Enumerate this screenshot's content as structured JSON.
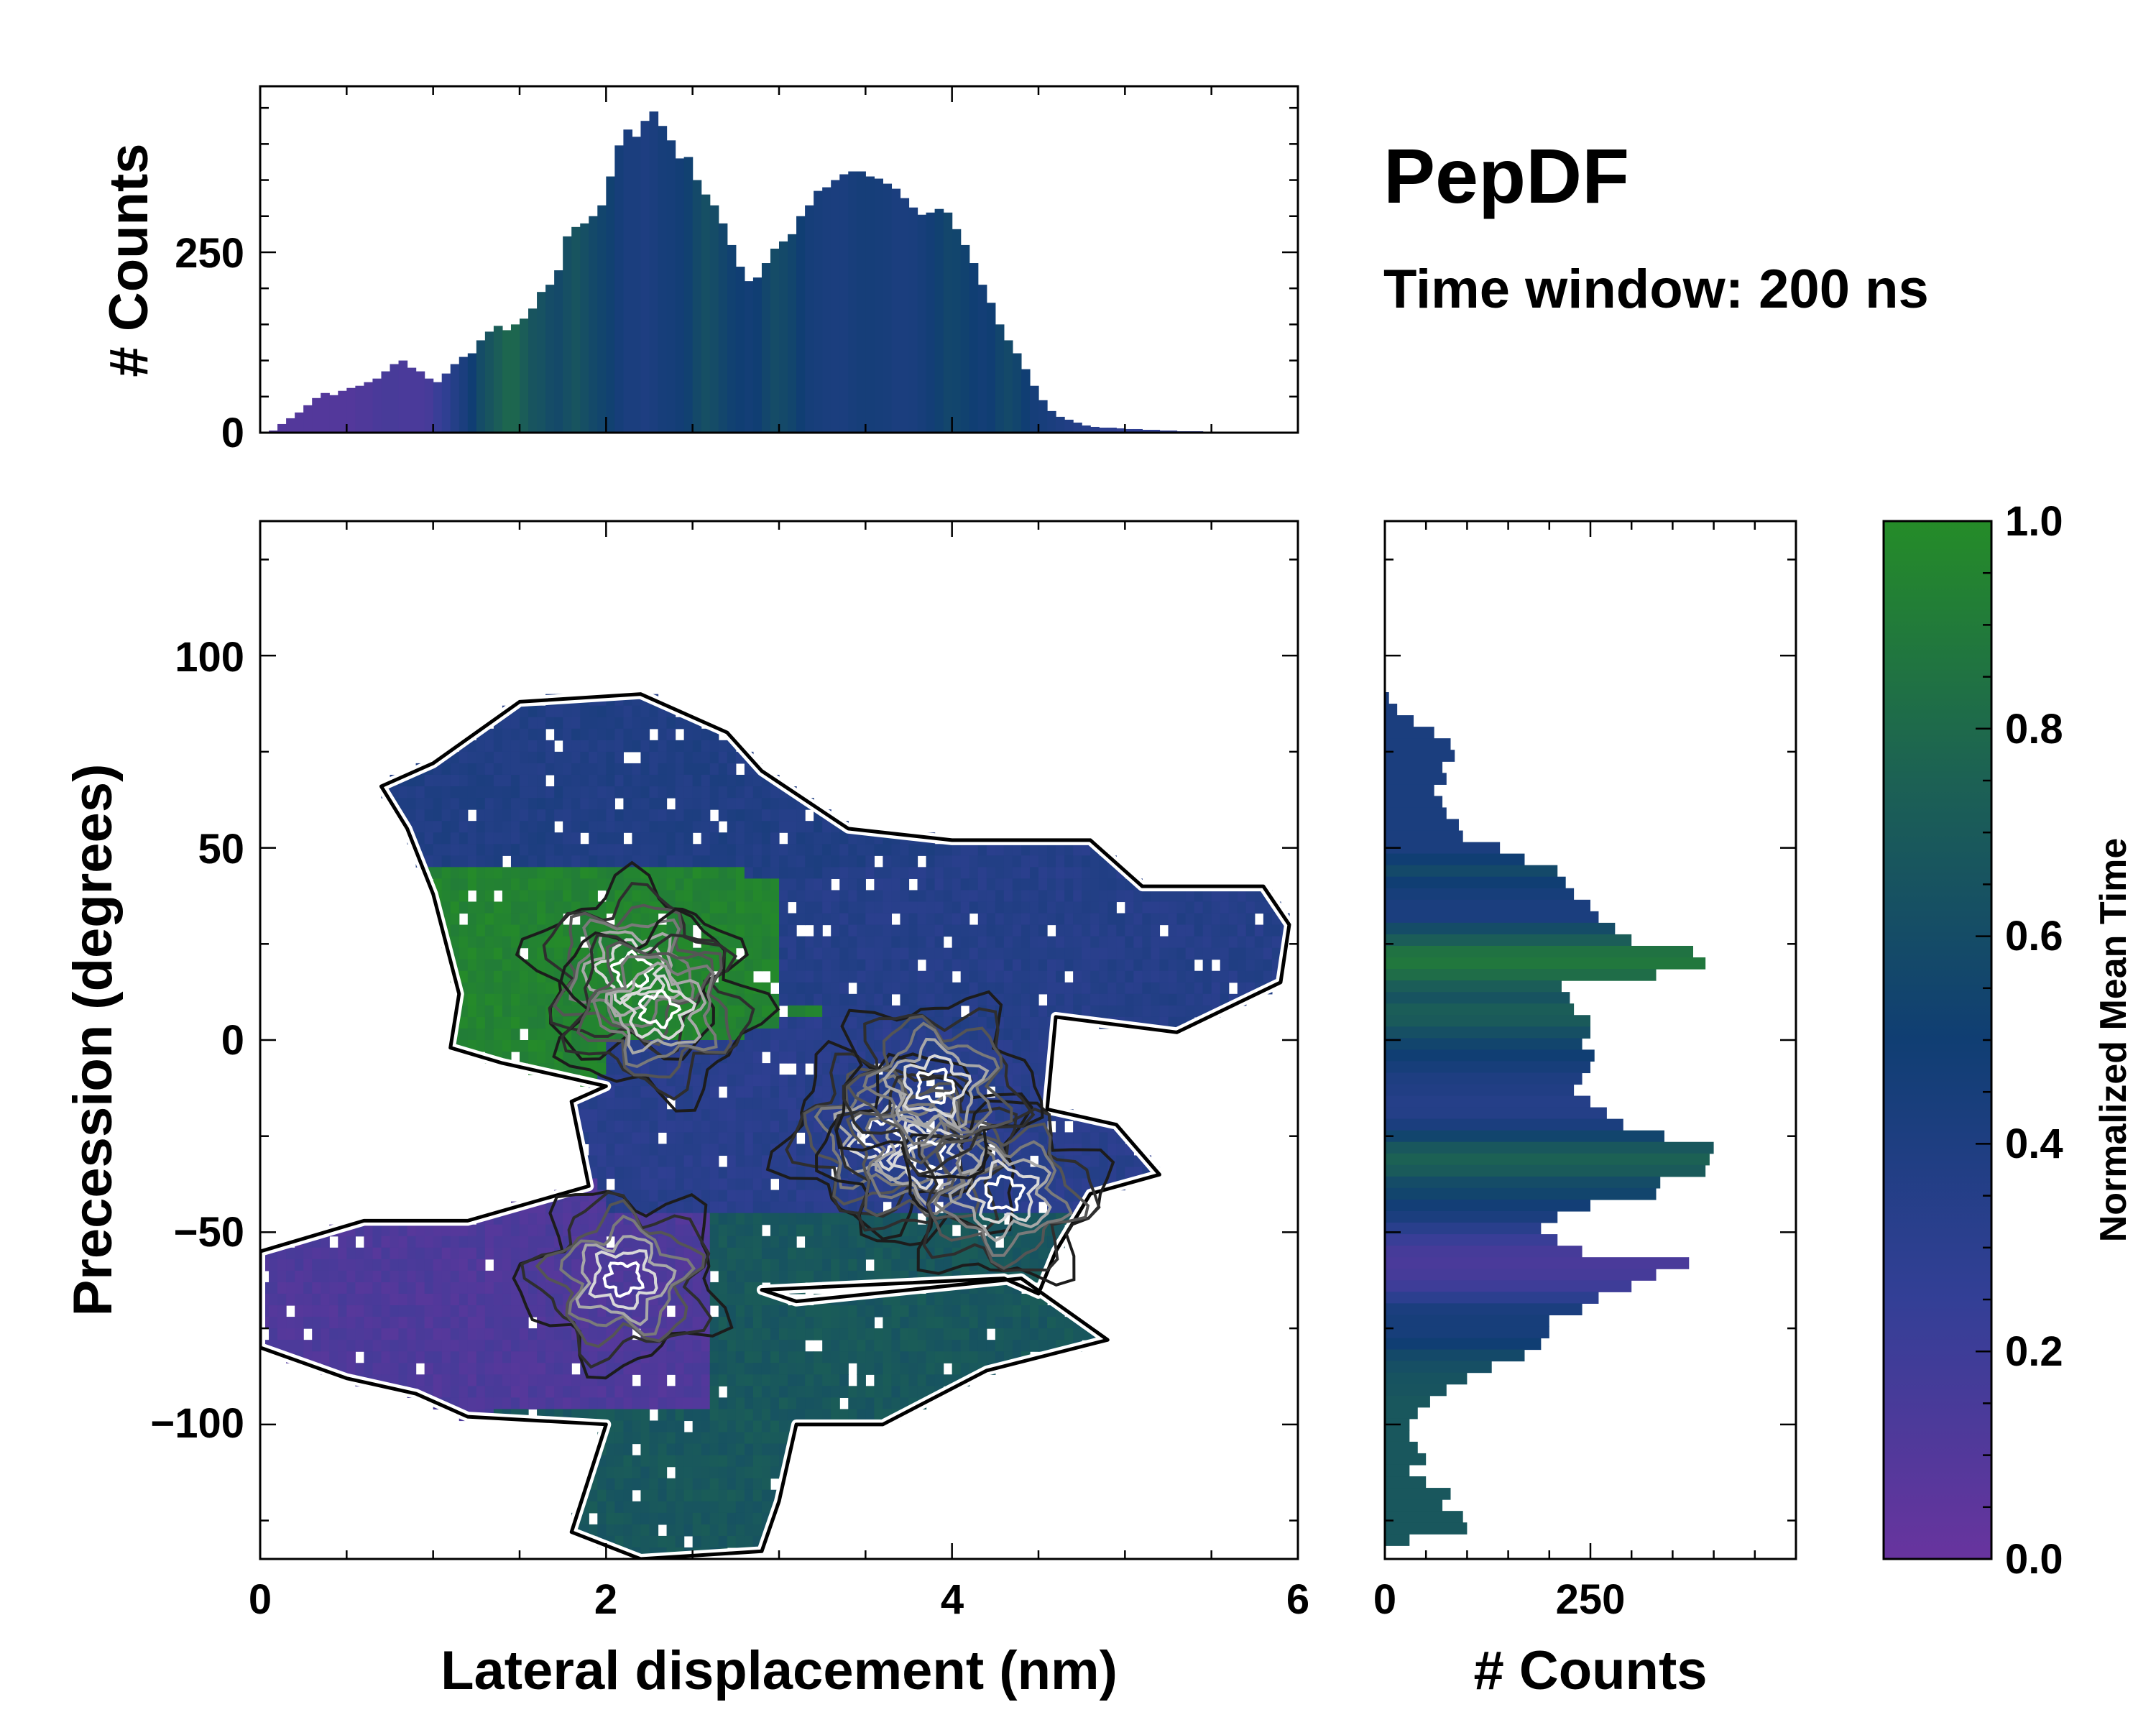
{
  "title": "PepDF",
  "subtitle": "Time window: 200 ns",
  "chart_data": [
    {
      "id": "main",
      "type": "heatmap",
      "xlabel": "Lateral displacement (nm)",
      "ylabel": "Precession (degrees)",
      "xlim": [
        0,
        6
      ],
      "ylim": [
        -135,
        135
      ],
      "xticks": [
        "0",
        "2",
        "4",
        "6"
      ],
      "yticks": [
        "100",
        "50",
        "0",
        "−50",
        "−100"
      ],
      "ytick_values": [
        100,
        50,
        0,
        -50,
        -100
      ],
      "note": "2D histogram colored by normalized mean time with density contours",
      "regions": [
        {
          "name": "upper band",
          "x_range": [
            0.7,
            4.0
          ],
          "y_range": [
            45,
            90
          ],
          "mean_time": 0.38
        },
        {
          "name": "right arm",
          "x_range": [
            3.0,
            6.0
          ],
          "y_range": [
            10,
            42
          ],
          "mean_time": 0.35
        },
        {
          "name": "green lobe",
          "x_range": [
            1.0,
            2.8
          ],
          "y_range": [
            0,
            45
          ],
          "mean_time": 0.95
        },
        {
          "name": "central basin",
          "x_range": [
            2.0,
            5.0
          ],
          "y_range": [
            -45,
            0
          ],
          "mean_time": 0.32
        },
        {
          "name": "lower-left purple",
          "x_range": [
            0.0,
            2.6
          ],
          "y_range": [
            -95,
            -45
          ],
          "mean_time": 0.12
        },
        {
          "name": "lower-right teal",
          "x_range": [
            2.6,
            5.0
          ],
          "y_range": [
            -100,
            -45
          ],
          "mean_time": 0.68
        },
        {
          "name": "bottom stem",
          "x_range": [
            1.7,
            3.1
          ],
          "y_range": [
            -135,
            -95
          ],
          "mean_time": 0.68
        }
      ],
      "density_peaks": [
        {
          "x": 2.15,
          "y": 18
        },
        {
          "x": 2.3,
          "y": 8
        },
        {
          "x": 3.6,
          "y": -25
        },
        {
          "x": 3.85,
          "y": -30
        },
        {
          "x": 4.3,
          "y": -40
        },
        {
          "x": 3.9,
          "y": -12
        },
        {
          "x": 2.1,
          "y": -62
        }
      ]
    },
    {
      "id": "top",
      "type": "bar",
      "ylabel": "# Counts",
      "yticks": [
        "250",
        "0"
      ],
      "ytick_values": [
        250,
        0
      ],
      "ylim": [
        0,
        480
      ],
      "xlim": [
        0,
        6
      ],
      "bin_width": 0.05,
      "x": [
        0.025,
        0.075,
        0.125,
        0.175,
        0.225,
        0.275,
        0.325,
        0.375,
        0.425,
        0.475,
        0.525,
        0.575,
        0.625,
        0.675,
        0.725,
        0.775,
        0.825,
        0.875,
        0.925,
        0.975,
        1.025,
        1.075,
        1.125,
        1.175,
        1.225,
        1.275,
        1.325,
        1.375,
        1.425,
        1.475,
        1.525,
        1.575,
        1.625,
        1.675,
        1.725,
        1.775,
        1.825,
        1.875,
        1.925,
        1.975,
        2.025,
        2.075,
        2.125,
        2.175,
        2.225,
        2.275,
        2.325,
        2.375,
        2.425,
        2.475,
        2.525,
        2.575,
        2.625,
        2.675,
        2.725,
        2.775,
        2.825,
        2.875,
        2.925,
        2.975,
        3.025,
        3.075,
        3.125,
        3.175,
        3.225,
        3.275,
        3.325,
        3.375,
        3.425,
        3.475,
        3.525,
        3.575,
        3.625,
        3.675,
        3.725,
        3.775,
        3.825,
        3.875,
        3.925,
        3.975,
        4.025,
        4.075,
        4.125,
        4.175,
        4.225,
        4.275,
        4.325,
        4.375,
        4.425,
        4.475,
        4.525,
        4.575,
        4.625,
        4.675,
        4.725,
        4.775,
        4.825,
        4.875,
        4.925,
        4.975,
        5.025,
        5.075,
        5.125,
        5.175,
        5.225,
        5.275,
        5.325,
        5.375,
        5.425,
        5.475,
        5.525,
        5.575,
        5.625,
        5.675,
        5.725,
        5.775,
        5.825,
        5.875,
        5.925,
        5.975
      ],
      "values": [
        0,
        3,
        12,
        20,
        28,
        38,
        48,
        55,
        52,
        58,
        62,
        65,
        70,
        75,
        85,
        95,
        100,
        90,
        85,
        75,
        70,
        82,
        95,
        105,
        110,
        128,
        140,
        148,
        142,
        150,
        158,
        172,
        195,
        205,
        225,
        272,
        285,
        290,
        300,
        315,
        355,
        398,
        420,
        410,
        432,
        445,
        425,
        405,
        380,
        382,
        350,
        330,
        315,
        290,
        260,
        230,
        210,
        215,
        235,
        255,
        265,
        275,
        300,
        315,
        335,
        340,
        350,
        358,
        362,
        362,
        355,
        352,
        345,
        338,
        325,
        312,
        302,
        305,
        310,
        305,
        282,
        260,
        235,
        205,
        180,
        150,
        128,
        110,
        88,
        65,
        45,
        30,
        22,
        18,
        14,
        10,
        8,
        7,
        7,
        6,
        5,
        5,
        4,
        4,
        3,
        3,
        2,
        2,
        2,
        1,
        1,
        1,
        0,
        0,
        0,
        0,
        0,
        0,
        0,
        0
      ],
      "colors": [
        0.1,
        0.1,
        0.1,
        0.1,
        0.1,
        0.1,
        0.1,
        0.1,
        0.1,
        0.1,
        0.1,
        0.12,
        0.12,
        0.14,
        0.15,
        0.15,
        0.14,
        0.14,
        0.14,
        0.16,
        0.22,
        0.28,
        0.36,
        0.42,
        0.5,
        0.6,
        0.66,
        0.72,
        0.78,
        0.78,
        0.72,
        0.66,
        0.64,
        0.6,
        0.58,
        0.62,
        0.66,
        0.62,
        0.58,
        0.55,
        0.52,
        0.46,
        0.42,
        0.42,
        0.4,
        0.42,
        0.45,
        0.46,
        0.48,
        0.52,
        0.58,
        0.62,
        0.6,
        0.56,
        0.52,
        0.5,
        0.48,
        0.5,
        0.56,
        0.6,
        0.58,
        0.55,
        0.5,
        0.46,
        0.44,
        0.43,
        0.42,
        0.42,
        0.44,
        0.46,
        0.46,
        0.45,
        0.44,
        0.42,
        0.42,
        0.43,
        0.45,
        0.48,
        0.52,
        0.56,
        0.55,
        0.53,
        0.5,
        0.48,
        0.5,
        0.55,
        0.58,
        0.55,
        0.5,
        0.46,
        0.44,
        0.42,
        0.4,
        0.38,
        0.36,
        0.34,
        0.32,
        0.3,
        0.3,
        0.28,
        0.28,
        0.28,
        0.28,
        0.27,
        0.27,
        0.26,
        0.26,
        0.26,
        0.25,
        0.25,
        0.25,
        0.25,
        0.25,
        0.25,
        0.25,
        0.25,
        0.25,
        0.25,
        0.25,
        0.25
      ]
    },
    {
      "id": "right",
      "type": "barh",
      "xlabel": "# Counts",
      "xticks": [
        "0",
        "250"
      ],
      "xtick_values": [
        0,
        250
      ],
      "xlim": [
        0,
        500
      ],
      "ylim": [
        -135,
        135
      ],
      "bin_width": 3,
      "y": [
        89,
        86,
        83,
        80,
        77,
        74,
        71,
        68,
        65,
        62,
        59,
        56,
        53,
        50,
        47,
        44,
        41,
        38,
        35,
        32,
        29,
        26,
        23,
        20,
        17,
        14,
        11,
        8,
        5,
        2,
        -1,
        -4,
        -7,
        -10,
        -13,
        -16,
        -19,
        -22,
        -25,
        -28,
        -31,
        -34,
        -37,
        -40,
        -43,
        -46,
        -49,
        -52,
        -55,
        -58,
        -61,
        -64,
        -67,
        -70,
        -73,
        -76,
        -79,
        -82,
        -85,
        -88,
        -91,
        -94,
        -97,
        -100,
        -103,
        -106,
        -109,
        -112,
        -115,
        -118,
        -121,
        -124,
        -127,
        -130,
        -133
      ],
      "values": [
        5,
        15,
        35,
        60,
        80,
        85,
        70,
        75,
        60,
        70,
        75,
        90,
        95,
        140,
        170,
        210,
        220,
        230,
        250,
        260,
        280,
        300,
        375,
        390,
        330,
        215,
        225,
        230,
        250,
        250,
        240,
        255,
        250,
        240,
        230,
        250,
        270,
        290,
        340,
        400,
        395,
        390,
        335,
        330,
        250,
        210,
        190,
        210,
        240,
        370,
        330,
        300,
        260,
        240,
        200,
        200,
        190,
        170,
        130,
        100,
        75,
        55,
        40,
        30,
        30,
        40,
        50,
        30,
        50,
        80,
        70,
        95,
        100,
        30,
        0
      ],
      "colors": [
        0.42,
        0.42,
        0.42,
        0.42,
        0.42,
        0.42,
        0.42,
        0.42,
        0.42,
        0.42,
        0.42,
        0.42,
        0.42,
        0.42,
        0.5,
        0.58,
        0.5,
        0.45,
        0.42,
        0.42,
        0.6,
        0.72,
        0.85,
        0.88,
        0.82,
        0.72,
        0.65,
        0.72,
        0.7,
        0.62,
        0.55,
        0.5,
        0.45,
        0.4,
        0.38,
        0.35,
        0.36,
        0.42,
        0.55,
        0.68,
        0.75,
        0.7,
        0.6,
        0.55,
        0.48,
        0.42,
        0.32,
        0.22,
        0.16,
        0.14,
        0.16,
        0.2,
        0.3,
        0.42,
        0.45,
        0.45,
        0.5,
        0.58,
        0.62,
        0.65,
        0.66,
        0.68,
        0.68,
        0.68,
        0.68,
        0.68,
        0.68,
        0.68,
        0.68,
        0.68,
        0.68,
        0.68,
        0.68,
        0.68,
        0.68
      ]
    },
    {
      "id": "colorbar",
      "type": "colorbar",
      "label": "Normalized Mean Time",
      "ticks": [
        "1.0",
        "0.8",
        "0.6",
        "0.4",
        "0.2",
        "0.0"
      ],
      "tick_values": [
        1.0,
        0.8,
        0.6,
        0.4,
        0.2,
        0.0
      ],
      "stops": [
        {
          "v": 0.0,
          "color": "#68349e"
        },
        {
          "v": 0.25,
          "color": "#333f96"
        },
        {
          "v": 0.5,
          "color": "#103e73"
        },
        {
          "v": 0.75,
          "color": "#1c6154"
        },
        {
          "v": 1.0,
          "color": "#258c28"
        }
      ]
    }
  ]
}
